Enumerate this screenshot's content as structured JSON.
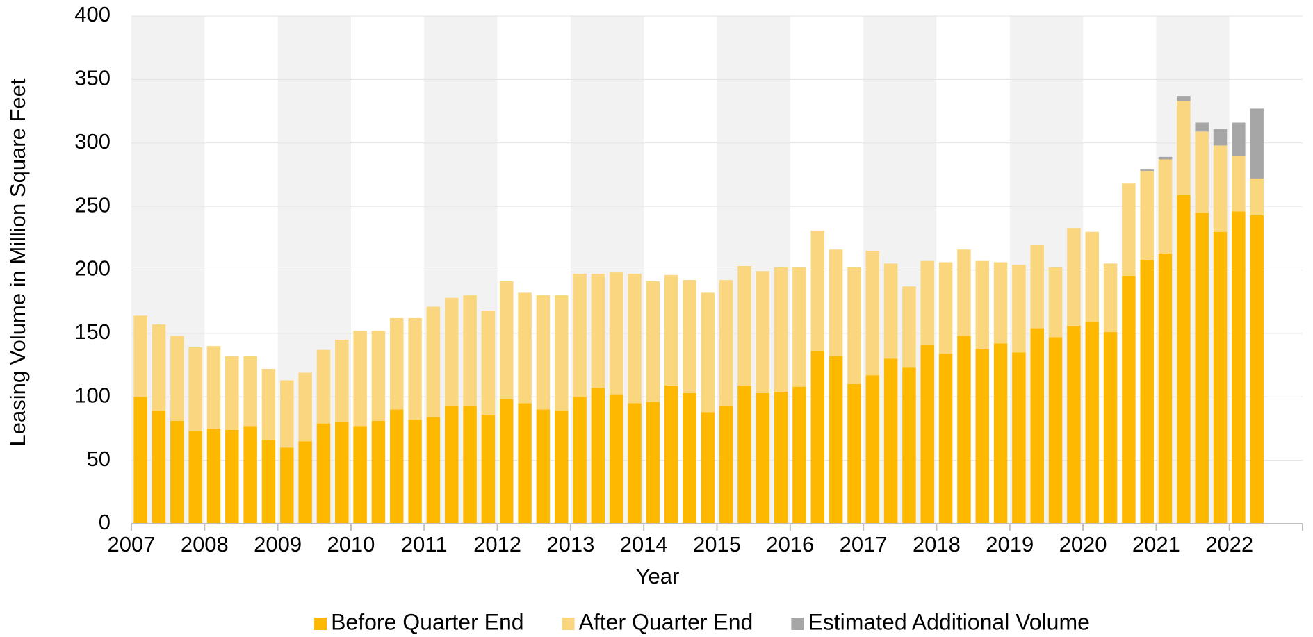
{
  "chart_data": {
    "type": "stacked_bar",
    "x_label": "Year",
    "y_label": "Leasing Volume in Million Square Feet",
    "categories": [
      "2007",
      null,
      null,
      null,
      "2008",
      null,
      null,
      null,
      "2009",
      null,
      null,
      null,
      "2010",
      null,
      null,
      null,
      "2011",
      null,
      null,
      null,
      "2012",
      null,
      null,
      null,
      "2013",
      null,
      null,
      null,
      "2014",
      null,
      null,
      null,
      "2015",
      null,
      null,
      null,
      "2016",
      null,
      null,
      null,
      "2017",
      null,
      null,
      null,
      "2018",
      null,
      null,
      null,
      "2019",
      null,
      null,
      null,
      "2020",
      null,
      null,
      null,
      "2021",
      null,
      null,
      null,
      "2022",
      null
    ],
    "series": [
      {
        "name": "Before Quarter End",
        "color": "#FFB800",
        "values": [
          100,
          89,
          81,
          73,
          75,
          74,
          77,
          66,
          60,
          65,
          79,
          80,
          77,
          81,
          90,
          82,
          84,
          93,
          93,
          86,
          98,
          95,
          90,
          89,
          100,
          107,
          102,
          95,
          96,
          109,
          103,
          88,
          93,
          109,
          103,
          104,
          108,
          136,
          132,
          110,
          117,
          130,
          123,
          141,
          134,
          148,
          138,
          142,
          135,
          154,
          147,
          156,
          159,
          151,
          195,
          208,
          213,
          259,
          245,
          230,
          246,
          243
        ]
      },
      {
        "name": "After Quarter End",
        "color": "#FAD67E",
        "values": [
          64,
          68,
          67,
          66,
          65,
          58,
          55,
          56,
          53,
          54,
          58,
          65,
          75,
          71,
          72,
          80,
          87,
          85,
          87,
          82,
          93,
          87,
          90,
          91,
          97,
          90,
          96,
          102,
          95,
          87,
          89,
          94,
          99,
          94,
          96,
          98,
          94,
          95,
          84,
          92,
          98,
          75,
          64,
          66,
          72,
          68,
          69,
          64,
          69,
          66,
          55,
          77,
          71,
          54,
          73,
          70,
          74,
          74,
          64,
          68,
          44,
          29
        ]
      },
      {
        "name": "Estimated Additional Volume",
        "color": "#A6A6A6",
        "values": [
          0,
          0,
          0,
          0,
          0,
          0,
          0,
          0,
          0,
          0,
          0,
          0,
          0,
          0,
          0,
          0,
          0,
          0,
          0,
          0,
          0,
          0,
          0,
          0,
          0,
          0,
          0,
          0,
          0,
          0,
          0,
          0,
          0,
          0,
          0,
          0,
          0,
          0,
          0,
          0,
          0,
          0,
          0,
          0,
          0,
          0,
          0,
          0,
          0,
          0,
          0,
          0,
          0,
          0,
          0,
          1,
          2,
          4,
          7,
          13,
          26,
          55
        ]
      }
    ],
    "ylim": [
      0,
      400
    ],
    "yticks": [
      0,
      50,
      100,
      150,
      200,
      250,
      300,
      350,
      400
    ],
    "grid": true,
    "legend": "bottom"
  }
}
